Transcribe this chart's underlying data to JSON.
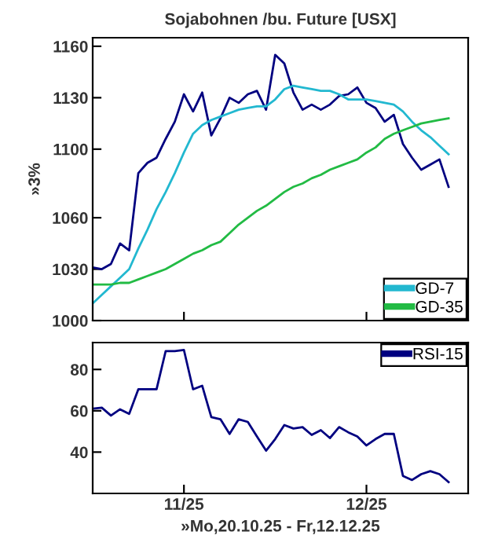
{
  "chart_data": [
    {
      "type": "line",
      "title": "Sojabohnen /bu. Future [USX]",
      "ylabel": "»3%",
      "categories": [
        null,
        null,
        null,
        null,
        null,
        null,
        null,
        null,
        null,
        null,
        null,
        null,
        null,
        null,
        null,
        null,
        null,
        null,
        null,
        null,
        null,
        null,
        null,
        null,
        null,
        null,
        null,
        null,
        null,
        null,
        null,
        null,
        null,
        null,
        null,
        null,
        null,
        null,
        null,
        null
      ],
      "ylim": [
        1000,
        1165
      ],
      "yticks": [
        1000,
        1030,
        1060,
        1100,
        1130,
        1160
      ],
      "tick_labels": "y",
      "grid": false,
      "legend": "bottom right",
      "series": [
        {
          "color": "#000080",
          "values": [
            1031,
            1030,
            1033,
            1045,
            1041,
            1086,
            1092,
            1095,
            1106,
            1116,
            1132,
            1122,
            1133,
            1108,
            1118,
            1130,
            1127,
            1132,
            1134,
            1123,
            1155,
            1150,
            1133,
            1123,
            1126,
            1123,
            1126,
            1131,
            1132,
            1136,
            1127,
            1124,
            1116,
            1120,
            1103,
            1095,
            1088,
            1091,
            1094,
            1078
          ]
        },
        {
          "name": "GD-7",
          "color": "#22b8d0",
          "values": [
            1010,
            1015,
            1020,
            1025,
            1030,
            1042,
            1053,
            1065,
            1075,
            1086,
            1098,
            1109,
            1114,
            1117,
            1119,
            1121,
            1123,
            1124,
            1125,
            1125,
            1129,
            1135,
            1137,
            1136,
            1135,
            1134,
            1134,
            1132,
            1129,
            1129,
            1129,
            1128,
            1127,
            1126,
            1122,
            1116,
            1111,
            1107,
            1102,
            1097
          ]
        },
        {
          "name": "GD-35",
          "color": "#22bb44",
          "values": [
            1021,
            1021,
            1021,
            1022,
            1022,
            1024,
            1026,
            1028,
            1030,
            1033,
            1036,
            1039,
            1041,
            1044,
            1046,
            1051,
            1056,
            1060,
            1064,
            1067,
            1071,
            1075,
            1078,
            1080,
            1083,
            1085,
            1088,
            1090,
            1092,
            1094,
            1098,
            1101,
            1106,
            1109,
            1111,
            1113,
            1115,
            1116,
            1117,
            1118
          ]
        }
      ]
    },
    {
      "type": "line",
      "xlabel": "»Mo,20.10.25 - Fr,12.12.25",
      "categories": [
        null,
        null,
        null,
        null,
        null,
        null,
        null,
        null,
        null,
        null,
        "11/25",
        null,
        null,
        null,
        null,
        null,
        null,
        null,
        null,
        null,
        null,
        null,
        null,
        null,
        null,
        null,
        null,
        null,
        null,
        null,
        "12/25",
        null,
        null,
        null,
        null,
        null,
        null,
        null,
        null,
        null
      ],
      "ylim": [
        20,
        93
      ],
      "yticks": [
        40,
        60,
        80
      ],
      "grid": false,
      "legend": "top right",
      "series": [
        {
          "name": "RSI-15",
          "color": "#000080",
          "values": [
            61,
            61.5,
            57.7,
            60.7,
            58.5,
            70.4,
            70.4,
            70.4,
            88.9,
            88.9,
            89.4,
            70.4,
            72.1,
            56.9,
            55.9,
            48.8,
            55.9,
            54.6,
            47.6,
            40.7,
            46.3,
            53.1,
            51.4,
            52.1,
            48.3,
            50.6,
            46.8,
            52.1,
            49.6,
            47.6,
            43.2,
            46.3,
            48.8,
            48.8,
            28.5,
            26.5,
            29.3,
            30.8,
            29.3,
            25.5
          ]
        }
      ]
    }
  ]
}
